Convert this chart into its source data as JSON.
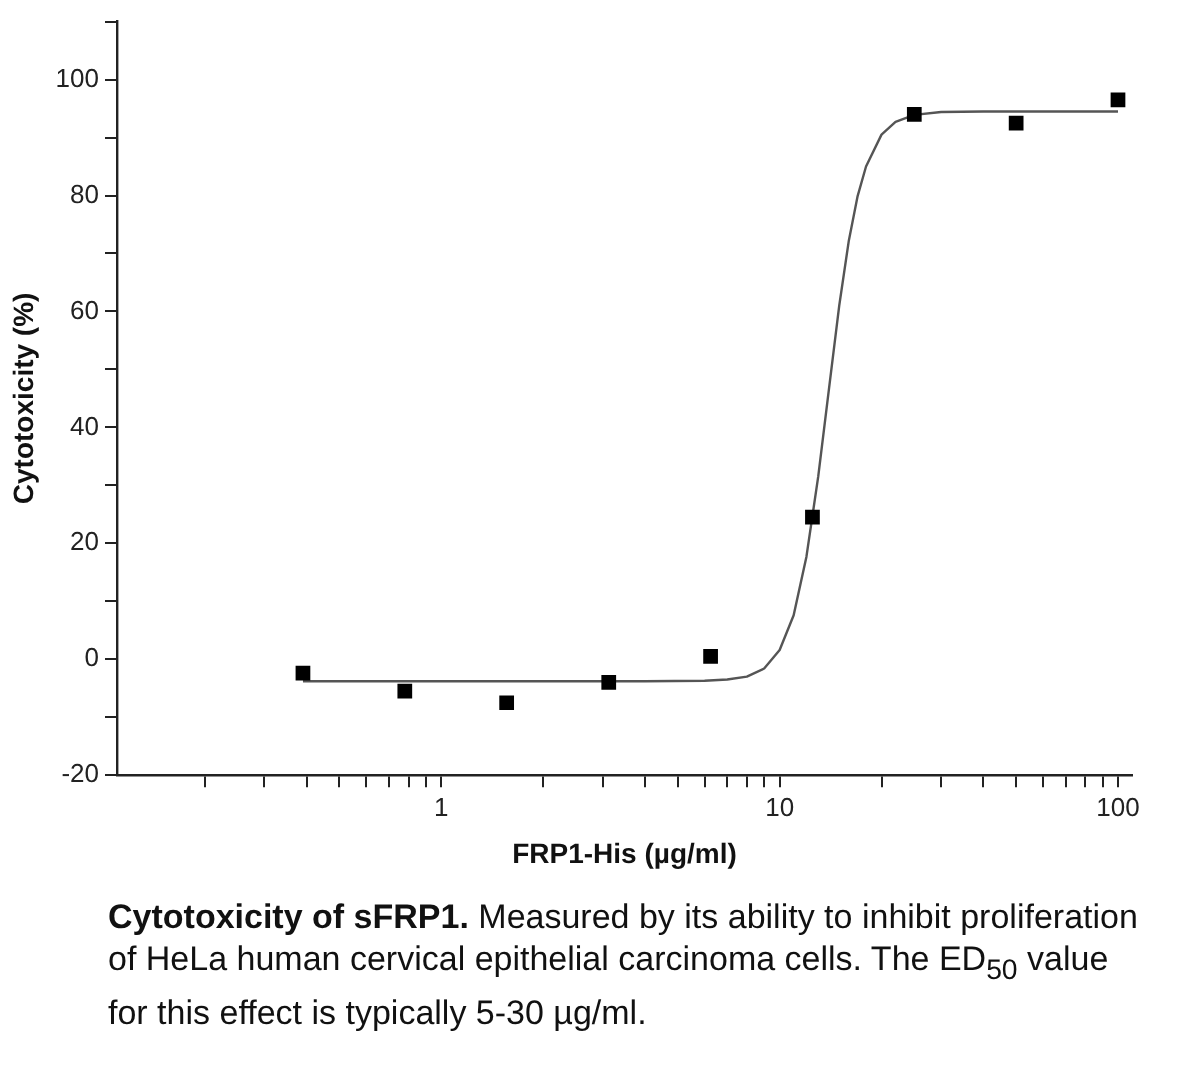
{
  "chart_data": {
    "type": "scatter",
    "xlabel": "FRP1-His (µg/ml)",
    "ylabel": "Cytotoxicity (%)",
    "annotations": [
      "Cytotoxicity of sFRP1.",
      "Measured by its ability to inhibit proliferation of HeLa human cervical epithelial carcinoma cells. The ED$_{50}$ value for this effect is typically 5-30 µg/ml."
    ],
    "log": "x",
    "grid": false,
    "legend": false,
    "xlim": [
      0.11,
      110
    ],
    "ylim": [
      -20,
      110
    ],
    "xticks": [
      {
        "value": 0.2,
        "label": null
      },
      {
        "value": 0.3,
        "label": null
      },
      {
        "value": 0.4,
        "label": null
      },
      {
        "value": 0.5,
        "label": null
      },
      {
        "value": 0.6,
        "label": null
      },
      {
        "value": 0.7,
        "label": null
      },
      {
        "value": 0.8,
        "label": null
      },
      {
        "value": 0.9,
        "label": null
      },
      1,
      {
        "value": 2,
        "label": null
      },
      {
        "value": 3,
        "label": null
      },
      {
        "value": 4,
        "label": null
      },
      {
        "value": 5,
        "label": null
      },
      {
        "value": 6,
        "label": null
      },
      {
        "value": 7,
        "label": null
      },
      {
        "value": 8,
        "label": null
      },
      {
        "value": 9,
        "label": null
      },
      10,
      {
        "value": 20,
        "label": null
      },
      {
        "value": 30,
        "label": null
      },
      {
        "value": 40,
        "label": null
      },
      {
        "value": 50,
        "label": null
      },
      {
        "value": 60,
        "label": null
      },
      {
        "value": 70,
        "label": null
      },
      {
        "value": 80,
        "label": null
      },
      {
        "value": 90,
        "label": null
      },
      100
    ],
    "yticks": [
      -20,
      {
        "value": -10,
        "label": null
      },
      0,
      {
        "value": 10,
        "label": null
      },
      20,
      {
        "value": 30,
        "label": null
      },
      40,
      {
        "value": 50,
        "label": null
      },
      60,
      {
        "value": 70,
        "label": null
      },
      80,
      {
        "value": 90,
        "label": null
      },
      100,
      {
        "value": 110,
        "label": null
      }
    ],
    "series": [
      {
        "marker": "square",
        "color": "#000000",
        "x": [
          0.39,
          0.78,
          1.56,
          3.125,
          6.25,
          12.5,
          25,
          50,
          100
        ],
        "values": [
          -2.4,
          -5.5,
          -7.5,
          -4,
          0.5,
          24.5,
          94,
          92.5,
          96.5
        ]
      },
      {
        "type": "line",
        "marker": "none",
        "line_style": "solid",
        "color": "#555555",
        "x": [
          0.39,
          1,
          2,
          4,
          6,
          7,
          8,
          9,
          10,
          11,
          12,
          13,
          14,
          15,
          16,
          17,
          18,
          20,
          22,
          25,
          30,
          40,
          60,
          100
        ],
        "values": [
          -3.8,
          -3.8,
          -3.8,
          -3.8,
          -3.7,
          -3.5,
          -3.0,
          -1.6,
          1.6,
          7.6,
          17.7,
          31.5,
          46.8,
          61.0,
          72.1,
          79.9,
          85.0,
          90.5,
          92.7,
          93.9,
          94.4,
          94.5,
          94.5,
          94.5
        ]
      }
    ]
  }
}
